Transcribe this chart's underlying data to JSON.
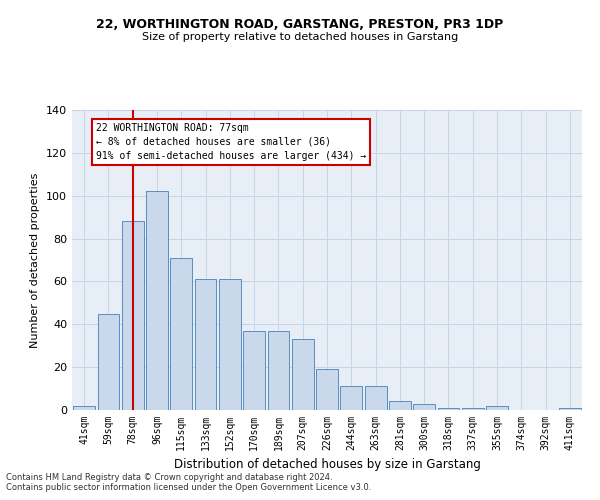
{
  "title_line1": "22, WORTHINGTON ROAD, GARSTANG, PRESTON, PR3 1DP",
  "title_line2": "Size of property relative to detached houses in Garstang",
  "xlabel": "Distribution of detached houses by size in Garstang",
  "ylabel": "Number of detached properties",
  "categories": [
    "41sqm",
    "59sqm",
    "78sqm",
    "96sqm",
    "115sqm",
    "133sqm",
    "152sqm",
    "170sqm",
    "189sqm",
    "207sqm",
    "226sqm",
    "244sqm",
    "263sqm",
    "281sqm",
    "300sqm",
    "318sqm",
    "337sqm",
    "355sqm",
    "374sqm",
    "392sqm",
    "411sqm"
  ],
  "values": [
    2,
    45,
    88,
    102,
    71,
    61,
    61,
    37,
    37,
    33,
    19,
    11,
    11,
    4,
    3,
    1,
    1,
    2,
    0,
    0,
    1
  ],
  "bar_color": "#c9d9eb",
  "bar_edge_color": "#5b8dc0",
  "redline_index": 2,
  "redline_label": "22 WORTHINGTON ROAD: 77sqm",
  "annotation_line2": "← 8% of detached houses are smaller (36)",
  "annotation_line3": "91% of semi-detached houses are larger (434) →",
  "annotation_box_color": "#ffffff",
  "annotation_box_edge": "#cc0000",
  "redline_color": "#cc0000",
  "ylim": [
    0,
    140
  ],
  "yticks": [
    0,
    20,
    40,
    60,
    80,
    100,
    120,
    140
  ],
  "grid_color": "#c8d4e8",
  "background_color": "#e8eef6",
  "footer_line1": "Contains HM Land Registry data © Crown copyright and database right 2024.",
  "footer_line2": "Contains public sector information licensed under the Open Government Licence v3.0."
}
